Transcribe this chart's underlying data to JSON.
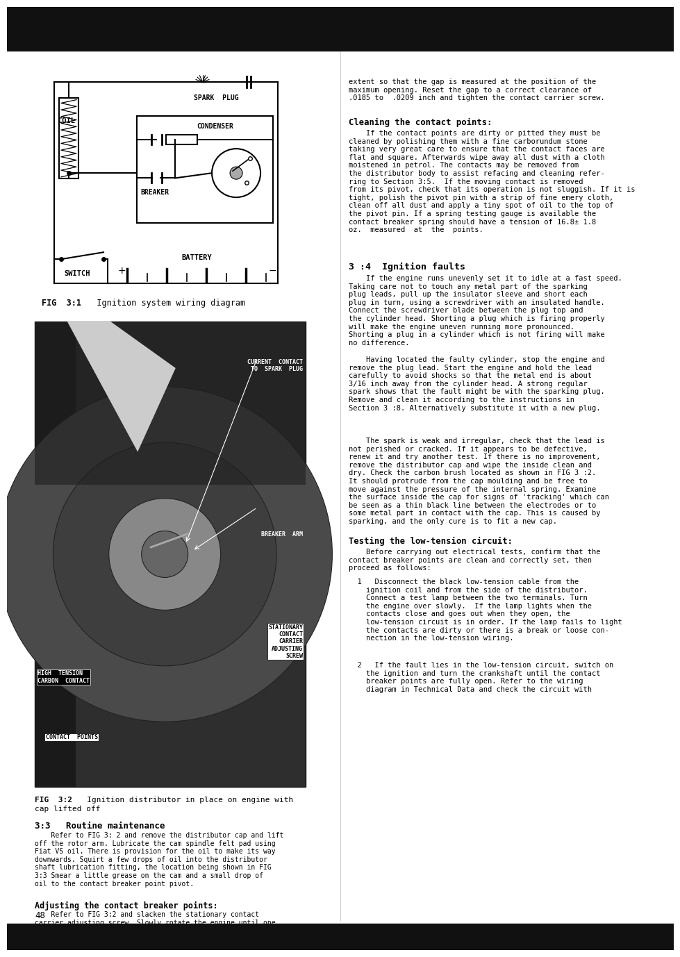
{
  "page_bg": "#ffffff",
  "fig31_caption_bold": "FIG  3:1",
  "fig31_caption_rest": "   Ignition system wiring diagram",
  "fig32_caption_bold": "FIG  3:2",
  "fig32_caption_rest": "   Ignition distributor in place on engine with",
  "fig32_caption_rest2": "cap lifted off",
  "section_33_title": "3:3   Routine maintenance",
  "section_33_body": "    Refer to FIG 3: 2 and remove the distributor cap and lift\noff the rotor arm. Lubricate the cam spindle felt pad using\nFiat VS oil. There is provision for the oil to make its way\ndownwards. Squirt a few drops of oil into the distributor\nshaft lubrication fitting, the location being shown in FIG\n3:3 Smear a little grease on the cam and a small drop of\noil to the contact breaker point pivot.",
  "section_adj_title": "Adjusting the contact breaker points:",
  "section_adj_body": "    Refer to FIG 3:2 and slacken the stationary contact\ncarrier adjusting screw. Slowly rotate the engine until one\none of the two cams has opened the points to the fullest",
  "right_top_text": "extent so that the gap is measured at the position of the\nmaximum opening. Reset the gap to a correct clearance of\n.0185 to  .0209 inch and tighten the contact carrier screw.",
  "cleaning_title": "Cleaning the contact points:",
  "cleaning_body": "    If the contact points are dirty or pitted they must be\ncleaned by polishing them with a fine carborundum stone\ntaking very great care to ensure that the contact faces are\nflat and square. Afterwards wipe away all dust with a cloth\nmoistened in petrol. The contacts may be removed from\nthe distributor body to assist refacing and cleaning refer-\nring to Section 3:5.  If the moving contact is removed\nfrom its pivot, check that its operation is not sluggish. If it is\ntight, polish the pivot pin with a strip of fine emery cloth,\nclean off all dust and apply a tiny spot of oil to the top of\nthe pivot pin. If a spring testing gauge is available the\ncontact breaker spring should have a tension of 16.8± 1.8\noz.  measured  at  the  points.",
  "section_34_title": "3 :4  Ignition faults",
  "section_34_body": "    If the engine runs unevenly set it to idle at a fast speed.\nTaking care not to touch any metal part of the sparking\nplug leads, pull up the insulator sleeve and short each\nplug in turn, using a screwdriver with an insulated handle.\nConnect the screwdriver blade between the plug top and\nthe cylinder head. Shorting a plug which is firing properly\nwill make the engine uneven running more pronounced.\nShorting a plug in a cylinder which is not firing will make\nno difference.",
  "section_34_body2": "    Having located the faulty cylinder, stop the engine and\nremove the plug lead. Start the engine and hold the lead\ncarefully to avoid shocks so that the metal end is about\n3/16 inch away from the cylinder head. A strong regular\nspark shows that the fault might be with the sparking plug.\nRemove and clean it according to the instructions in\nSection 3 :8. Alternatively substitute it with a new plug.",
  "section_34_body3": "    The spark is weak and irregular, check that the lead is\nnot perished or cracked. If it appears to be defective,\nrenew it and try another test. If there is no improvement,\nremove the distributor cap and wipe the inside clean and\ndry. Check the carbon brush located as shown in FIG 3 :2.\nIt should protrude from the cap moulding and be free to\nmove against the pressure of the internal spring. Examine\nthe surface inside the cap for signs of 'tracking' which can\nbe seen as a thin black line between the electrodes or to\nsome metal part in contact with the cap. This is caused by\nsparking, and the only cure is to fit a new cap.",
  "testing_title": "Testing the low-tension circuit:",
  "testing_body": "    Before carrying out electrical tests, confirm that the\ncontact breaker points are clean and correctly set, then\nproceed as follows:",
  "testing_item1": "  1   Disconnect the black low-tension cable from the\n    ignition coil and from the side of the distributor.\n    Connect a test lamp between the two terminals. Turn\n    the engine over slowly.  If the lamp lights when the\n    contacts close and goes out when they open, the\n    low-tension circuit is in order. If the lamp fails to light\n    the contacts are dirty or there is a break or loose con-\n    nection in the low-tension wiring.",
  "testing_item2": "  2   If the fault lies in the low-tension circuit, switch on\n    the ignition and turn the crankshaft until the contact\n    breaker points are fully open. Refer to the wiring\n    diagram in Technical Data and check the circuit with",
  "page_number": "48",
  "labels": {
    "spark_plug": "SPARK  PLUG",
    "coil": "COIL",
    "condenser": "CONDENSER",
    "breaker": "BREAKER",
    "switch": "SWITCH",
    "battery": "BATTERY",
    "current_contact": "CURRENT  CONTACT\nTO  SPARK  PLUG",
    "breaker_arm": "BREAKER  ARM",
    "high_tension": "HIGH  TENSION\nCARBON  CONTACT",
    "stationary_contact": "STATIONARY\nCONTACT\nCARRIER\nADJUSTING\nSCREW",
    "contact_points": "CONTACT  POINTS"
  },
  "text_color": "#000000",
  "lc": "#000000",
  "top_bar_color": "#111111",
  "bot_bar_color": "#111111"
}
